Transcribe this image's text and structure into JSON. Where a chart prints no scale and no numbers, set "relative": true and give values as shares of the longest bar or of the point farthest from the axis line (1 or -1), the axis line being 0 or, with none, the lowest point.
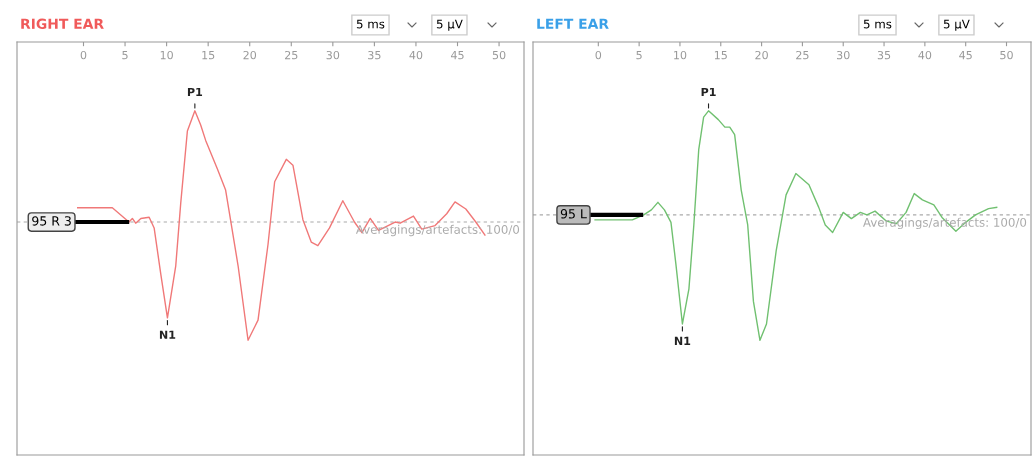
{
  "chart_data": [
    {
      "type": "line",
      "title": "RIGHT EAR",
      "relative": true,
      "xlim": [
        -8,
        53
      ],
      "xticks": [
        0,
        5,
        10,
        15,
        20,
        25,
        30,
        35,
        40,
        45,
        50
      ],
      "line_style": "solid",
      "marker": "none",
      "x": [
        -0.7,
        3.47,
        5.47,
        5.88,
        6.28,
        6.9,
        7.9,
        8.5,
        9.3,
        10.1,
        11.1,
        11.7,
        12.5,
        13.4,
        14.1,
        14.7,
        16.1,
        17.1,
        17.5,
        18.6,
        19.8,
        21.0,
        22.2,
        23.0,
        24.4,
        25.2,
        26.4,
        27.4,
        28.2,
        29.6,
        31.2,
        32.6,
        33.5,
        34.5,
        35.5,
        37.5,
        38.1,
        39.7,
        40.7,
        42.3,
        43.7,
        44.7,
        46.0,
        47.2,
        48.3
      ],
      "series": [
        {
          "color": "#f07878",
          "values": [
            0.12,
            0.12,
            0,
            0.03,
            -0.01,
            0.03,
            0.04,
            -0.05,
            -0.44,
            -0.81,
            -0.37,
            0.16,
            0.77,
            0.94,
            0.82,
            0.69,
            0.45,
            0.27,
            0.1,
            -0.37,
            -1,
            -0.83,
            -0.19,
            0.34,
            0.53,
            0.48,
            0.02,
            -0.17,
            -0.2,
            -0.05,
            0.18,
            0,
            -0.09,
            0.03,
            -0.07,
            0,
            -0.01,
            0.05,
            -0.06,
            -0.03,
            0.07,
            0.17,
            0.11,
            0,
            -0.11
          ]
        }
      ],
      "ref_lines": [
        {
          "axis": "y",
          "value": 0,
          "color": "#aaaaaa",
          "line_style": "dashed"
        }
      ],
      "annotations": [
        {
          "text": "P1",
          "x": 13.4,
          "y": 0.94
        },
        {
          "text": "N1",
          "x": 10.1,
          "y": -0.81
        },
        "95 R 3",
        "Averagings/artefacts: 100/0",
        "5 ms",
        "5 µV"
      ]
    },
    {
      "type": "line",
      "title": "LEFT EAR",
      "relative": true,
      "xlim": [
        -8,
        53
      ],
      "xticks": [
        0,
        5,
        10,
        15,
        20,
        25,
        30,
        35,
        40,
        45,
        50
      ],
      "line_style": "solid",
      "marker": "none",
      "x": [
        -0.4,
        4.17,
        5.56,
        6.5,
        7.3,
        8.1,
        8.9,
        9.5,
        10.3,
        11.1,
        11.7,
        12.3,
        12.9,
        13.5,
        14.7,
        15.5,
        16.1,
        16.7,
        17.5,
        18.3,
        19.0,
        19.8,
        20.6,
        21.8,
        23.0,
        24.2,
        25.8,
        27.0,
        27.8,
        28.7,
        30.0,
        31.0,
        32.1,
        32.9,
        33.9,
        35.3,
        36.5,
        37.7,
        38.7,
        39.7,
        41.1,
        42.1,
        43.8,
        44.8,
        46.2,
        47.8,
        48.8
      ],
      "series": [
        {
          "color": "#70c070",
          "values": [
            -0.04,
            -0.04,
            0,
            0.04,
            0.1,
            0.04,
            -0.06,
            -0.39,
            -0.87,
            -0.59,
            -0.08,
            0.52,
            0.78,
            0.83,
            0.76,
            0.7,
            0.7,
            0.64,
            0.2,
            -0.08,
            -0.69,
            -1,
            -0.87,
            -0.28,
            0.16,
            0.33,
            0.24,
            0.06,
            -0.08,
            -0.14,
            0.02,
            -0.03,
            0.02,
            0,
            0.03,
            -0.05,
            -0.07,
            0.02,
            0.17,
            0.12,
            0.08,
            -0.02,
            -0.13,
            -0.07,
            0,
            0.05,
            0.06
          ]
        }
      ],
      "ref_lines": [
        {
          "axis": "y",
          "value": 0,
          "color": "#aaaaaa",
          "line_style": "dashed"
        }
      ],
      "annotations": [
        {
          "text": "P1",
          "x": 13.5,
          "y": 0.83
        },
        {
          "text": "N1",
          "x": 10.3,
          "y": -0.87
        },
        "95 L",
        "Averagings/artefacts: 100/0",
        "5 ms",
        "5 µV"
      ]
    }
  ]
}
